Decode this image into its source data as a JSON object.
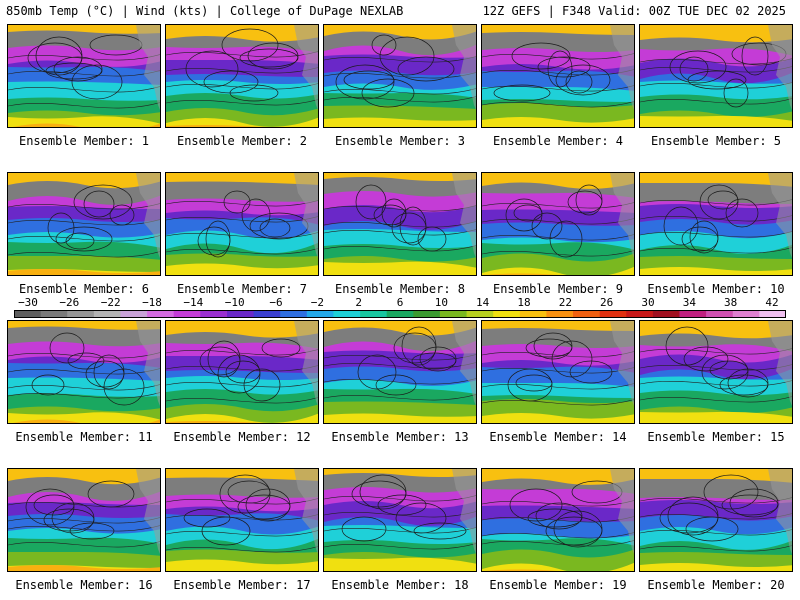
{
  "header": {
    "left": "850mb Temp (°C) | Wind (kts) | College of DuPage NEXLAB",
    "right": "12Z GEFS | F348 Valid: 00Z TUE DEC 02 2025"
  },
  "members": [
    "Ensemble Member: 1",
    "Ensemble Member: 2",
    "Ensemble Member: 3",
    "Ensemble Member: 4",
    "Ensemble Member: 5",
    "Ensemble Member: 6",
    "Ensemble Member: 7",
    "Ensemble Member: 8",
    "Ensemble Member: 9",
    "Ensemble Member: 10",
    "Ensemble Member: 11",
    "Ensemble Member: 12",
    "Ensemble Member: 13",
    "Ensemble Member: 14",
    "Ensemble Member: 15",
    "Ensemble Member: 16",
    "Ensemble Member: 17",
    "Ensemble Member: 18",
    "Ensemble Member: 19",
    "Ensemble Member: 20"
  ],
  "colorbar": {
    "ticks": [
      "−30",
      "−26",
      "−22",
      "−18",
      "−14",
      "−10",
      "−6",
      "−2",
      "2",
      "6",
      "10",
      "14",
      "18",
      "22",
      "26",
      "30",
      "34",
      "38",
      "42"
    ],
    "colors": [
      "#5e5e5e",
      "#7a7a7a",
      "#969696",
      "#b2b2b2",
      "#c9a2d8",
      "#d46be0",
      "#c43cd6",
      "#9a2fd0",
      "#6a28c8",
      "#3b3fd0",
      "#2f6fe0",
      "#23a8e8",
      "#1fd0d8",
      "#19c6a0",
      "#1aa860",
      "#3a9a30",
      "#7ab820",
      "#b8d020",
      "#f0e010",
      "#f8c010",
      "#f89010",
      "#f06010",
      "#e03010",
      "#c81818",
      "#a01020",
      "#c02080",
      "#d050b0",
      "#e080d0",
      "#f0c0f0"
    ]
  }
}
